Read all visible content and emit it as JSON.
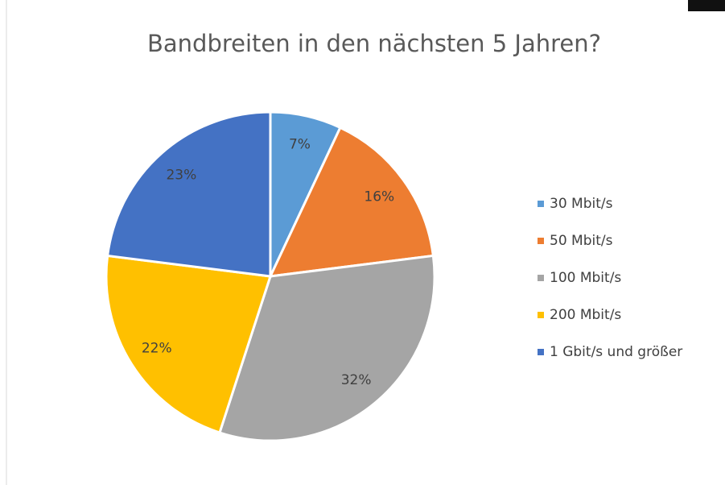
{
  "chart_data": {
    "type": "pie",
    "title": "Bandbreiten in den nächsten 5 Jahren?",
    "categories": [
      "30 Mbit/s",
      "50 Mbit/s",
      "100 Mbit/s",
      "200 Mbit/s",
      "1 Gbit/s und größer"
    ],
    "values": [
      7,
      16,
      32,
      22,
      23
    ],
    "value_labels": [
      "7%",
      "16%",
      "32%",
      "22%",
      "23%"
    ],
    "colors": [
      "#5b9bd5",
      "#ed7d31",
      "#a5a5a5",
      "#ffc000",
      "#4472c4"
    ],
    "legend": "right"
  }
}
